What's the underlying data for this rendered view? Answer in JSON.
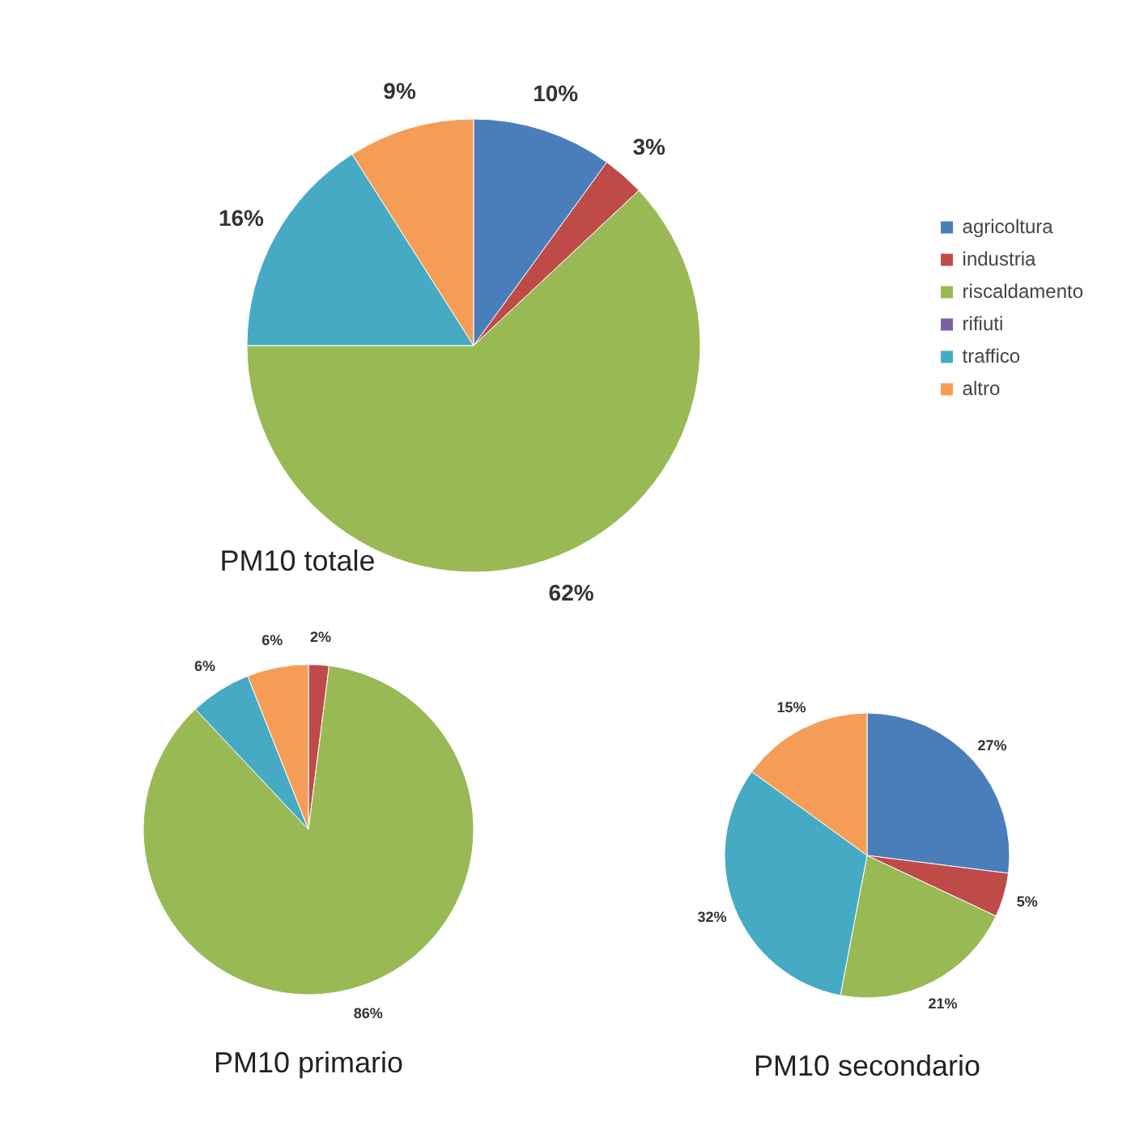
{
  "chart_data": [
    {
      "type": "pie",
      "title": "PM10 totale",
      "categories": [
        "agricoltura",
        "industria",
        "riscaldamento",
        "rifiuti",
        "traffico",
        "altro"
      ],
      "values": [
        10,
        3,
        62,
        0,
        16,
        9
      ],
      "colors": [
        "#4a7ebb",
        "#be4b48",
        "#98b954",
        "#7d60a0",
        "#46aac5",
        "#f59d56"
      ],
      "value_labels": [
        "10%",
        "3%",
        "62%",
        null,
        "16%",
        "9%"
      ],
      "legend": "right"
    },
    {
      "type": "pie",
      "title": "PM10 primario",
      "values": [
        0,
        2,
        86,
        0,
        6,
        6
      ],
      "colors": [
        "#4a7ebb",
        "#be4b48",
        "#98b954",
        "#7d60a0",
        "#46aac5",
        "#f59d56"
      ],
      "value_labels": [
        null,
        "2%",
        "86%",
        null,
        "6%",
        "6%"
      ]
    },
    {
      "type": "pie",
      "title": "PM10 secondario",
      "values": [
        27,
        5,
        21,
        0,
        32,
        15
      ],
      "colors": [
        "#4a7ebb",
        "#be4b48",
        "#98b954",
        "#7d60a0",
        "#46aac5",
        "#f59d56"
      ],
      "value_labels": [
        "27%",
        "5%",
        "21%",
        null,
        "32%",
        "15%"
      ]
    }
  ]
}
